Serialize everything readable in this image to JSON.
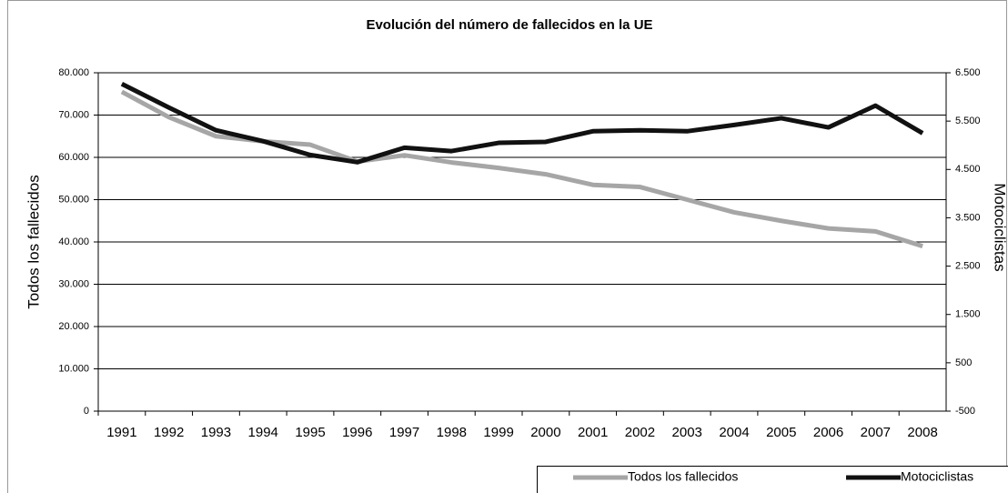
{
  "chart_data": {
    "type": "line",
    "title": "Evolución del número de fallecidos en la UE",
    "y_label": "Todos los fallecidos",
    "y2_label": "Motociclistas",
    "categories": [
      "1991",
      "1992",
      "1993",
      "1994",
      "1995",
      "1996",
      "1997",
      "1998",
      "1999",
      "2000",
      "2001",
      "2002",
      "2003",
      "2004",
      "2005",
      "2006",
      "2007",
      "2008"
    ],
    "series": [
      {
        "name": "Todos los fallecidos",
        "color": "#a6a6a6",
        "axis": "y",
        "values": [
          75500,
          69500,
          65000,
          63800,
          63000,
          59000,
          60500,
          58800,
          57500,
          56000,
          53500,
          53000,
          50000,
          47000,
          45000,
          43200,
          42500,
          39000
        ]
      },
      {
        "name": "Motociclistas",
        "color": "#111111",
        "axis": "y2",
        "values": [
          6270,
          5780,
          5310,
          5085,
          4800,
          4650,
          4950,
          4880,
          5050,
          5070,
          5290,
          5310,
          5290,
          5420,
          5560,
          5370,
          5820,
          5250
        ]
      }
    ],
    "ylim": [
      0,
      80000
    ],
    "yticks": [
      0,
      {
        "value": 10000,
        "label": "10.000"
      },
      {
        "value": 20000,
        "label": "20.000"
      },
      {
        "value": 30000,
        "label": "30.000"
      },
      {
        "value": 40000,
        "label": "40.000"
      },
      {
        "value": 50000,
        "label": "50.000"
      },
      {
        "value": 60000,
        "label": "60.000"
      },
      {
        "value": 70000,
        "label": "70.000"
      },
      {
        "value": 80000,
        "label": "80.000"
      }
    ],
    "y2lim": [
      -500,
      6500
    ],
    "y2ticks": [
      -500,
      500,
      {
        "value": 1500,
        "label": "1.500"
      },
      {
        "value": 2500,
        "label": "2.500"
      },
      {
        "value": 3500,
        "label": "3.500"
      },
      {
        "value": 4500,
        "label": "4.500"
      },
      {
        "value": 5500,
        "label": "5.500"
      },
      {
        "value": 6500,
        "label": "6.500"
      }
    ],
    "grid": true,
    "legend": "bottom"
  }
}
